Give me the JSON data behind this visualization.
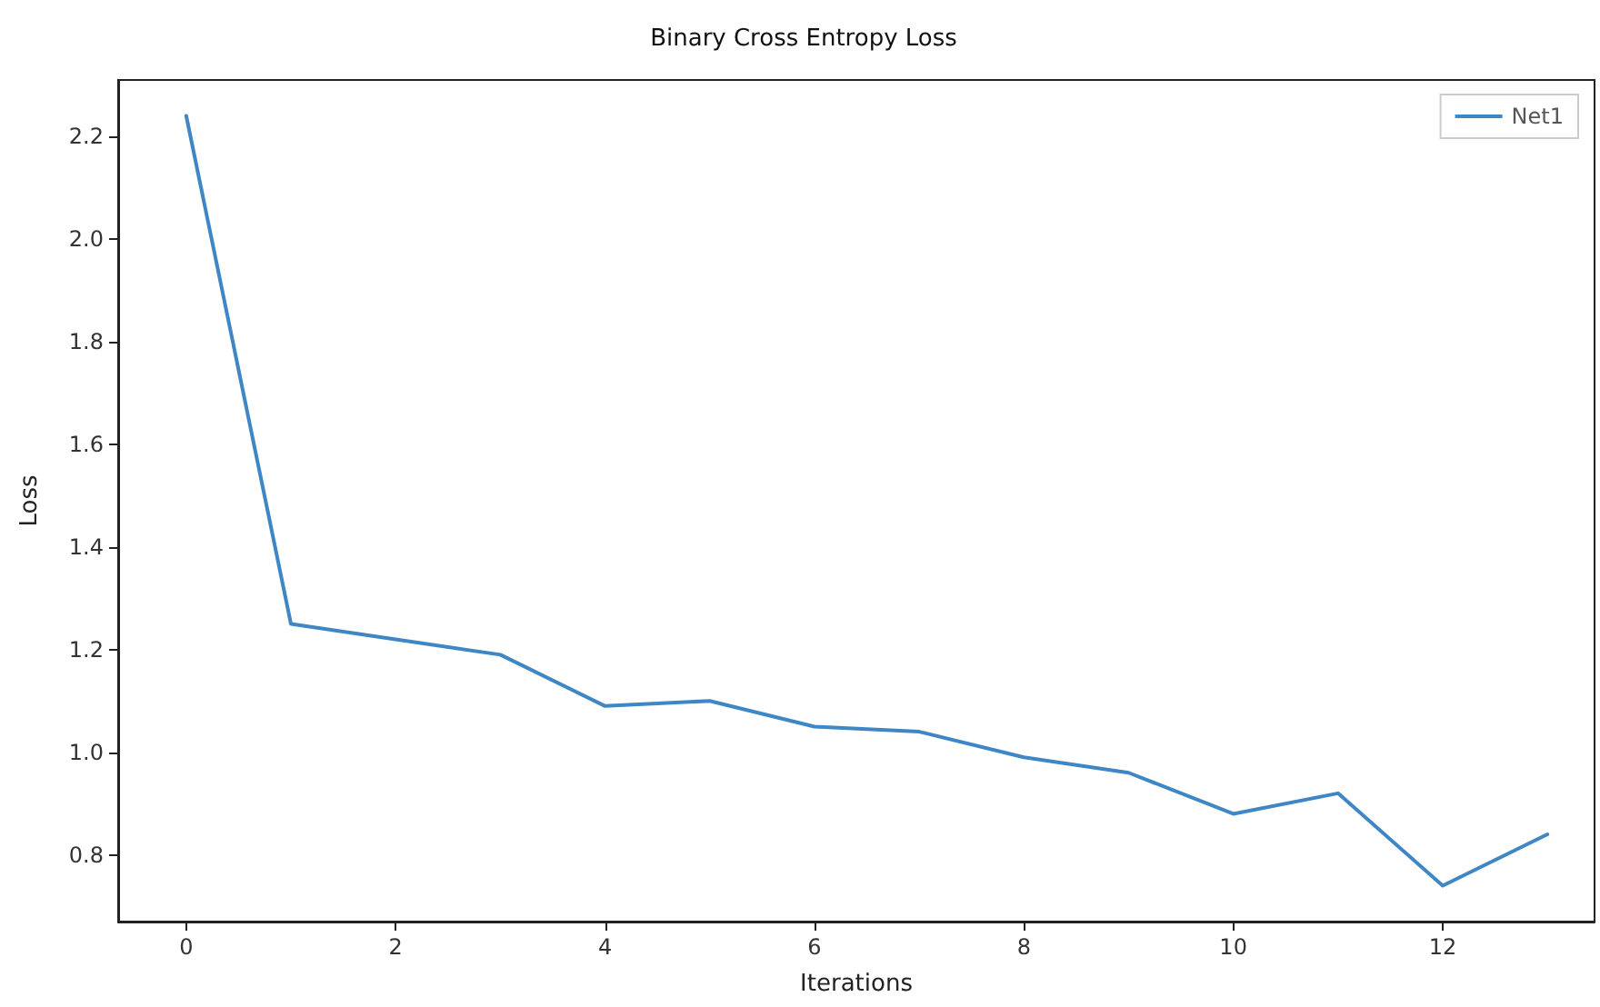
{
  "chart_data": {
    "type": "line",
    "title": "Binary Cross Entropy Loss",
    "xlabel": "Iterations",
    "ylabel": "Loss",
    "x": [
      0,
      1,
      2,
      3,
      4,
      5,
      6,
      7,
      8,
      9,
      10,
      11,
      12,
      13
    ],
    "series": [
      {
        "name": "Net1",
        "color": "#3f86c4",
        "values": [
          2.24,
          1.25,
          1.22,
          1.19,
          1.09,
          1.1,
          1.05,
          1.04,
          0.99,
          0.96,
          0.88,
          0.92,
          0.74,
          0.84
        ]
      }
    ],
    "xlim": [
      -0.65,
      13.45
    ],
    "xticks": [
      0,
      2,
      4,
      6,
      8,
      10,
      12
    ],
    "ylim": [
      0.67,
      2.31
    ],
    "yticks": [
      0.8,
      {
        "value": 1,
        "label": "1.0"
      },
      1.2,
      1.4,
      1.6,
      1.8,
      {
        "value": 2,
        "label": "2.0"
      },
      2.2
    ],
    "grid": false,
    "legend": "top right",
    "marker": "none",
    "line_style": "solid"
  }
}
